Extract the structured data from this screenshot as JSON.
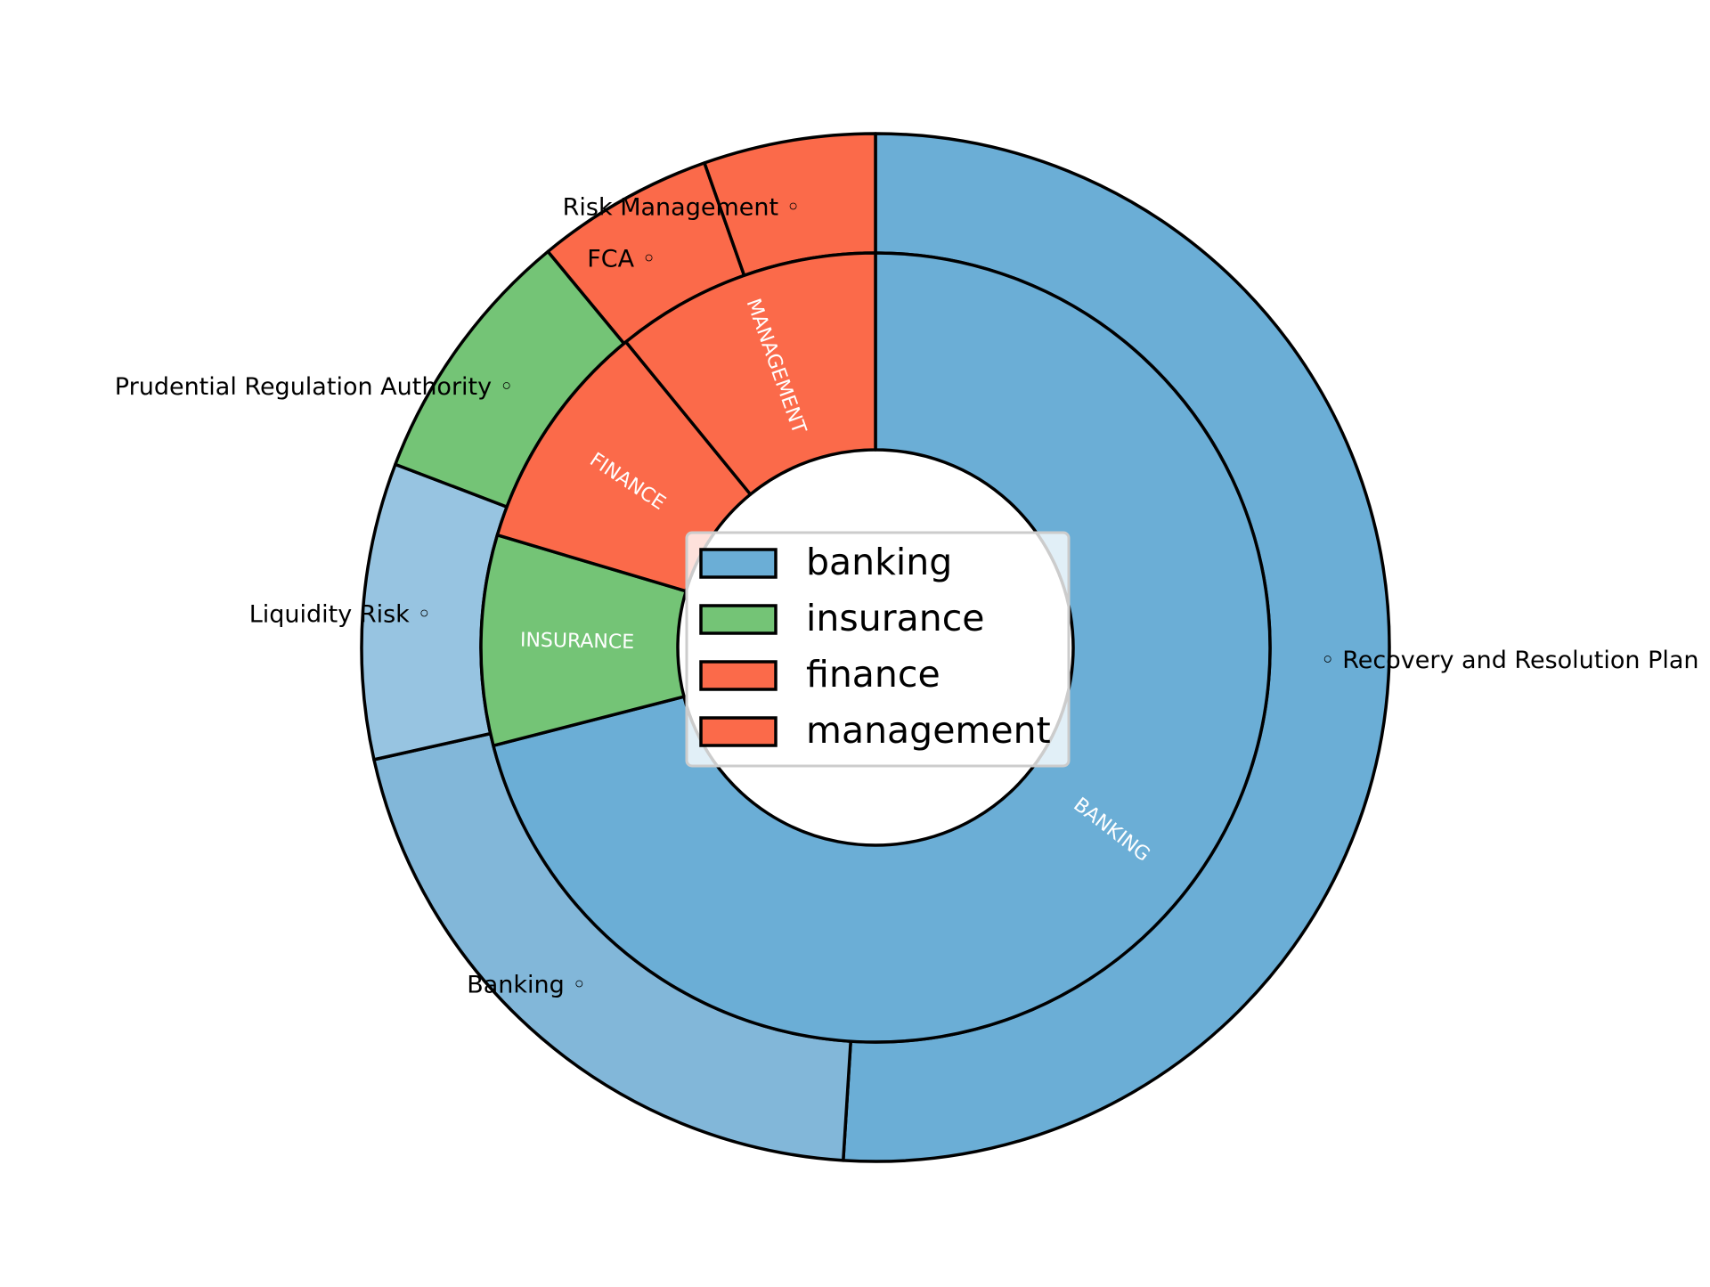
{
  "chart_data": {
    "type": "pie",
    "style": "nested-donut",
    "inner_ring": [
      {
        "label": "BANKING",
        "value": 71,
        "color": "#6baed6"
      },
      {
        "label": "INSURANCE",
        "value": 8.6,
        "color": "#74c476"
      },
      {
        "label": "FINANCE",
        "value": 9.5,
        "color": "#fb6a4a"
      },
      {
        "label": "MANAGEMENT",
        "value": 10.9,
        "color": "#fb6a4a"
      }
    ],
    "outer_ring": [
      {
        "label": "Recovery and Resolution Plan",
        "value": 51.0,
        "color": "#6baed6"
      },
      {
        "label": "Banking",
        "value": 20.5,
        "color": "#82b7d9"
      },
      {
        "label": "Liquidity Risk",
        "value": 9.3,
        "color": "#97c4e1"
      },
      {
        "label": "Prudential Regulation Authority",
        "value": 8.2,
        "color": "#74c476"
      },
      {
        "label": "FCA",
        "value": 5.6,
        "color": "#fb6a4a"
      },
      {
        "label": "Risk Management",
        "value": 5.4,
        "color": "#fb6a4a"
      }
    ],
    "legend": {
      "placement": "center",
      "entries": [
        {
          "label": "banking",
          "color": "#6baed6"
        },
        {
          "label": "insurance",
          "color": "#74c476"
        },
        {
          "label": "finance",
          "color": "#fb6a4a"
        },
        {
          "label": "management",
          "color": "#fb6a4a"
        }
      ]
    },
    "start_angle_deg": 90,
    "direction": "clockwise",
    "title": "",
    "edge_color": "#000000"
  }
}
